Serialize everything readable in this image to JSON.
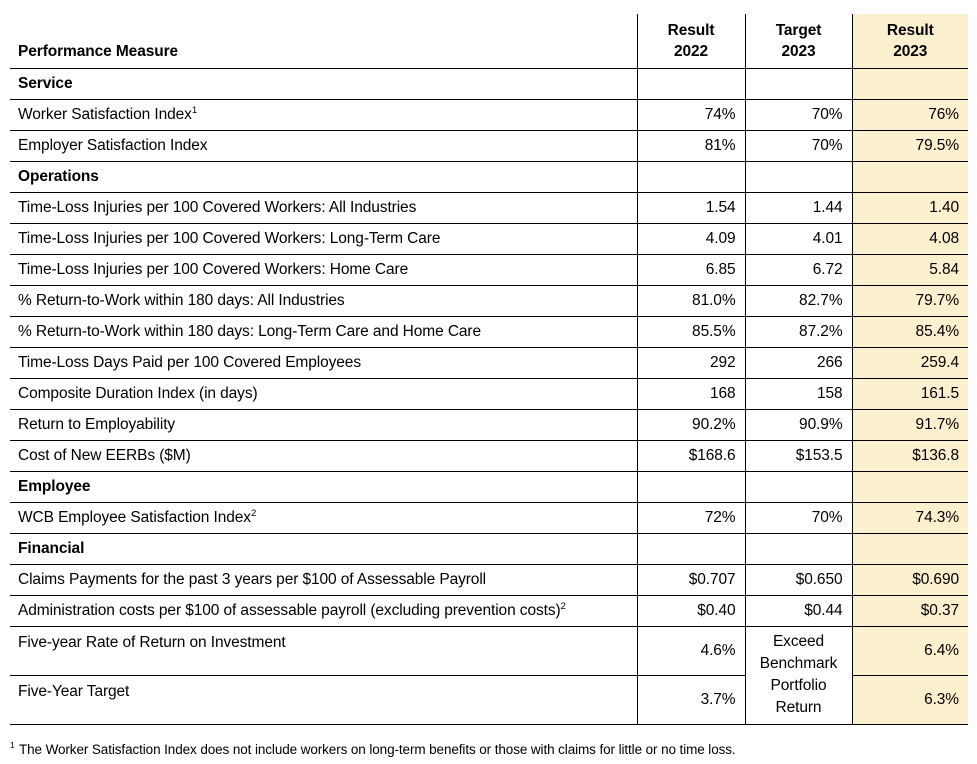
{
  "accent_color": "#FBF0CE",
  "table": {
    "header": {
      "measure": "Performance Measure",
      "cols": [
        {
          "line1": "Result",
          "line2": "2022"
        },
        {
          "line1": "Target",
          "line2": "2023"
        },
        {
          "line1": "Result",
          "line2": "2023"
        }
      ]
    },
    "rows": [
      {
        "type": "section",
        "label": "Service"
      },
      {
        "type": "data",
        "label": "Worker Satisfaction Index",
        "sup": "1",
        "values": [
          "74%",
          "70%",
          "76%"
        ]
      },
      {
        "type": "data",
        "label": "Employer Satisfaction Index",
        "values": [
          "81%",
          "70%",
          "79.5%"
        ]
      },
      {
        "type": "section",
        "label": "Operations"
      },
      {
        "type": "data",
        "label": "Time-Loss Injuries per 100 Covered Workers: All Industries",
        "values": [
          "1.54",
          "1.44",
          "1.40"
        ]
      },
      {
        "type": "data",
        "label": "Time-Loss Injuries per 100 Covered Workers: Long-Term Care",
        "values": [
          "4.09",
          "4.01",
          "4.08"
        ]
      },
      {
        "type": "data",
        "label": "Time-Loss Injuries per 100 Covered Workers: Home Care",
        "values": [
          "6.85",
          "6.72",
          "5.84"
        ]
      },
      {
        "type": "data",
        "label": "% Return-to-Work within 180 days: All Industries",
        "values": [
          "81.0%",
          "82.7%",
          "79.7%"
        ]
      },
      {
        "type": "data",
        "label": "% Return-to-Work within 180 days: Long-Term Care and Home Care",
        "values": [
          "85.5%",
          "87.2%",
          "85.4%"
        ]
      },
      {
        "type": "data",
        "label": "Time-Loss Days Paid per 100 Covered Employees",
        "values": [
          "292",
          "266",
          "259.4"
        ]
      },
      {
        "type": "data",
        "label": "Composite Duration Index (in days)",
        "values": [
          "168",
          "158",
          "161.5"
        ]
      },
      {
        "type": "data",
        "label": "Return to Employability",
        "values": [
          "90.2%",
          "90.9%",
          "91.7%"
        ]
      },
      {
        "type": "data",
        "label": "Cost of New EERBs ($M)",
        "values": [
          "$168.6",
          "$153.5",
          "$136.8"
        ]
      },
      {
        "type": "section",
        "label": "Employee"
      },
      {
        "type": "data",
        "label": "WCB Employee Satisfaction Index",
        "sup": "2",
        "values": [
          "72%",
          "70%",
          "74.3%"
        ]
      },
      {
        "type": "section",
        "label": "Financial"
      },
      {
        "type": "data",
        "label": "Claims Payments for the past 3 years per $100 of Assessable Payroll",
        "values": [
          "$0.707",
          "$0.650",
          "$0.690"
        ]
      },
      {
        "type": "data",
        "label": "Administration costs per $100 of assessable payroll (excluding prevention costs)",
        "sup": "2",
        "values": [
          "$0.40",
          "$0.44",
          "$0.37"
        ]
      },
      {
        "type": "data",
        "label": "Five-year Rate of Return on Investment",
        "values": [
          "4.6%",
          "Exceed Benchmark Portfolio Return",
          "6.4%"
        ]
      },
      {
        "type": "data",
        "label": "Five-Year Target",
        "values": [
          "3.7%",
          "",
          "6.3%"
        ]
      }
    ]
  },
  "footnote": {
    "sup": "1",
    "text": "The Worker Satisfaction Index does not include workers on long-term benefits or those with claims for little or no time loss."
  }
}
